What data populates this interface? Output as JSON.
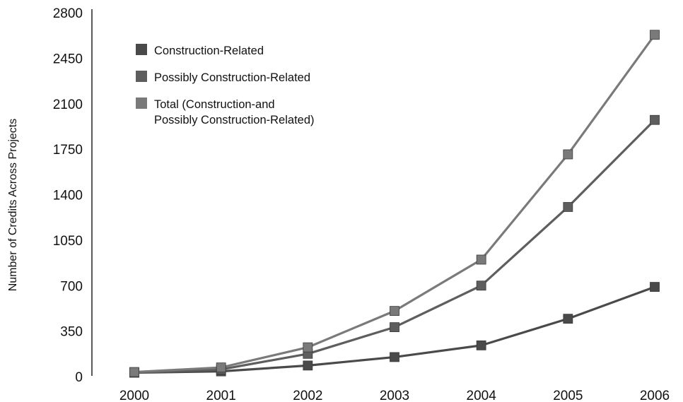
{
  "chart_data": {
    "type": "line",
    "title": "",
    "xlabel": "",
    "ylabel": "Number of Credits Across Projects",
    "x": [
      "2000",
      "2001",
      "2002",
      "2003",
      "2004",
      "2005",
      "2006"
    ],
    "ylim": [
      0,
      2800
    ],
    "yticks": [
      "0",
      "350",
      "700",
      "1050",
      "1400",
      "1750",
      "2100",
      "2450",
      "2800"
    ],
    "grid": false,
    "legend_position": "top-left",
    "series": [
      {
        "name": "Construction-Related",
        "color": "#4a4a4a",
        "values": [
          30,
          40,
          85,
          150,
          240,
          445,
          690
        ]
      },
      {
        "name": "Possibly Construction-Related",
        "color": "#5e5e5e",
        "values": [
          30,
          55,
          175,
          380,
          700,
          1305,
          1975
        ]
      },
      {
        "name": "Total (Construction-and Possibly Construction-Related)",
        "name_lines": [
          "Total (Construction-and",
          "Possibly Construction-Related)"
        ],
        "color": "#7a7a7a",
        "values": [
          35,
          70,
          225,
          505,
          900,
          1710,
          2630
        ]
      }
    ]
  }
}
